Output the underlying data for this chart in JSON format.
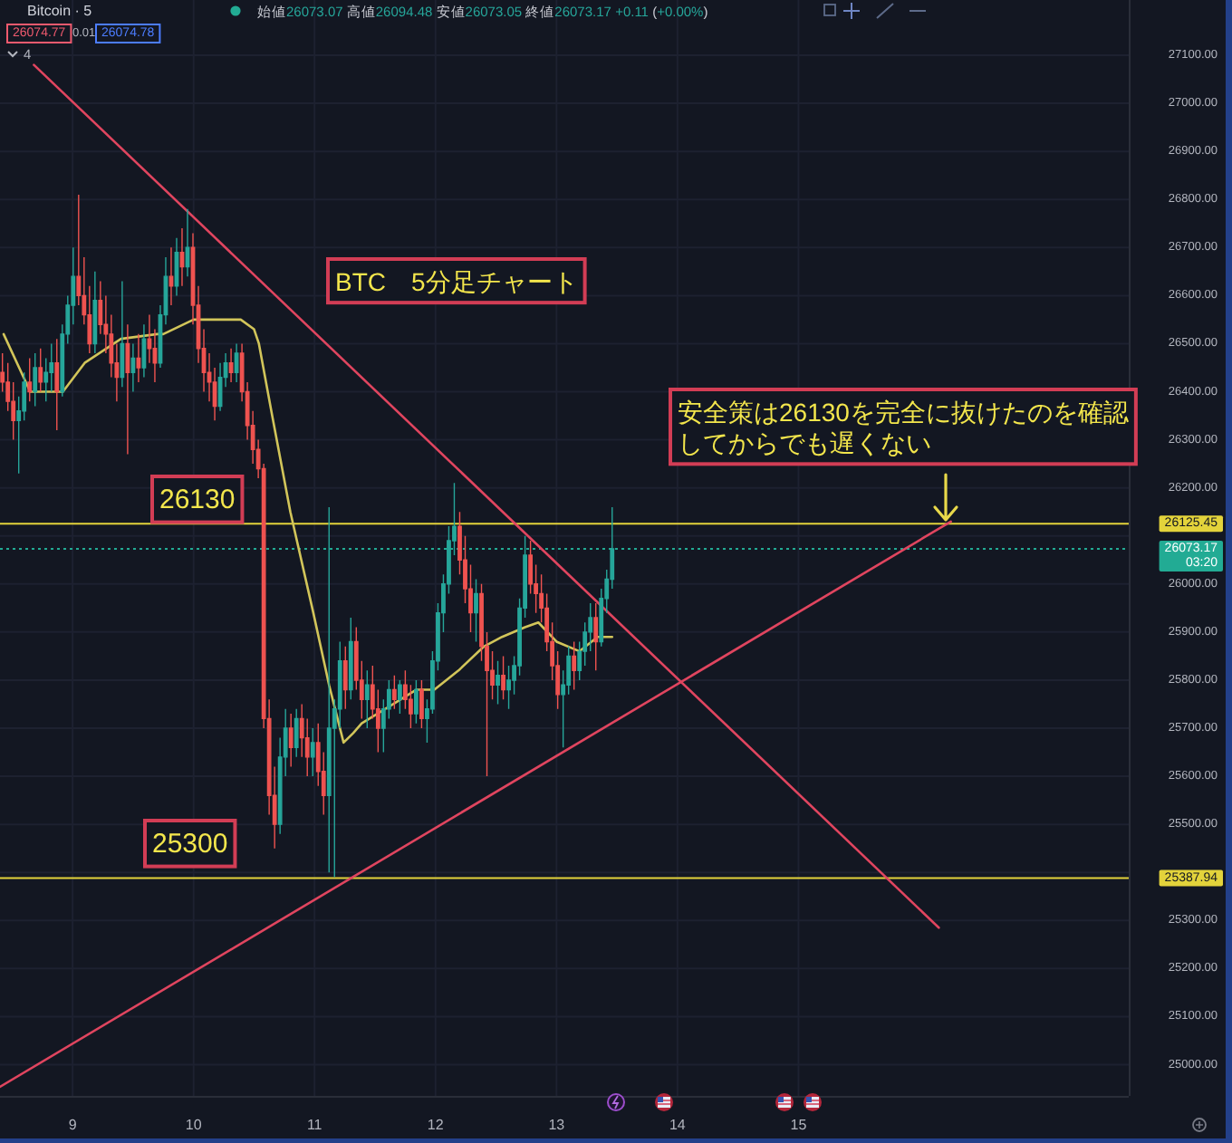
{
  "chart_data": {
    "type": "candlestick",
    "title": "Bitcoin · 5",
    "x": [
      8.42,
      8.465,
      8.51,
      8.555,
      8.6,
      8.645,
      8.69,
      8.735,
      8.78,
      8.825,
      8.87,
      8.915,
      8.96,
      9.005,
      9.05,
      9.095,
      9.14,
      9.185,
      9.23,
      9.275,
      9.32,
      9.365,
      9.41,
      9.455,
      9.5,
      9.545,
      9.59,
      9.635,
      9.68,
      9.725,
      9.77,
      9.815,
      9.86,
      9.905,
      9.95,
      9.995,
      10.04,
      10.085,
      10.13,
      10.175,
      10.22,
      10.265,
      10.31,
      10.355,
      10.4,
      10.445,
      10.49,
      10.535,
      10.58,
      10.625,
      10.67,
      10.715,
      10.76,
      10.805,
      10.85,
      10.895,
      10.94,
      10.985,
      11.03,
      11.075,
      11.12,
      11.165,
      11.21,
      11.255,
      11.3,
      11.345,
      11.39,
      11.435,
      11.48,
      11.525,
      11.57,
      11.615,
      11.66,
      11.705,
      11.75,
      11.795,
      11.84,
      11.885,
      11.93,
      11.975,
      12.02,
      12.065,
      12.11,
      12.155,
      12.2,
      12.245,
      12.29,
      12.335,
      12.38,
      12.425,
      12.47,
      12.515,
      12.56,
      12.605,
      12.65,
      12.695,
      12.74,
      12.785,
      12.83,
      12.875,
      12.92,
      12.965,
      13.01,
      13.055,
      13.1,
      13.145,
      13.19,
      13.235,
      13.28,
      13.325,
      13.37,
      13.415,
      13.46
    ],
    "ohlc": [
      [
        26440,
        26480,
        26400,
        26420
      ],
      [
        26420,
        26460,
        26360,
        26380
      ],
      [
        26380,
        26420,
        26300,
        26340
      ],
      [
        26340,
        26390,
        26230,
        26360
      ],
      [
        26360,
        26440,
        26340,
        26420
      ],
      [
        26420,
        26470,
        26380,
        26400
      ],
      [
        26400,
        26480,
        26370,
        26450
      ],
      [
        26450,
        26490,
        26400,
        26420
      ],
      [
        26420,
        26470,
        26380,
        26440
      ],
      [
        26440,
        26500,
        26400,
        26460
      ],
      [
        26460,
        26510,
        26320,
        26400
      ],
      [
        26400,
        26540,
        26390,
        26520
      ],
      [
        26520,
        26600,
        26500,
        26580
      ],
      [
        26580,
        26700,
        26540,
        26640
      ],
      [
        26640,
        26810,
        26580,
        26600
      ],
      [
        26600,
        26680,
        26540,
        26560
      ],
      [
        26560,
        26620,
        26480,
        26500
      ],
      [
        26500,
        26650,
        26480,
        26590
      ],
      [
        26590,
        26630,
        26520,
        26540
      ],
      [
        26540,
        26600,
        26480,
        26520
      ],
      [
        26520,
        26560,
        26430,
        26460
      ],
      [
        26460,
        26500,
        26380,
        26430
      ],
      [
        26430,
        26630,
        26410,
        26500
      ],
      [
        26500,
        26540,
        26270,
        26440
      ],
      [
        26440,
        26500,
        26400,
        26470
      ],
      [
        26470,
        26520,
        26420,
        26450
      ],
      [
        26450,
        26540,
        26430,
        26510
      ],
      [
        26510,
        26560,
        26460,
        26490
      ],
      [
        26490,
        26530,
        26420,
        26460
      ],
      [
        26460,
        26580,
        26450,
        26560
      ],
      [
        26560,
        26680,
        26540,
        26640
      ],
      [
        26640,
        26700,
        26580,
        26620
      ],
      [
        26620,
        26720,
        26600,
        26690
      ],
      [
        26690,
        26740,
        26620,
        26660
      ],
      [
        26660,
        26780,
        26640,
        26700
      ],
      [
        26700,
        26730,
        26540,
        26580
      ],
      [
        26580,
        26620,
        26460,
        26490
      ],
      [
        26490,
        26530,
        26400,
        26440
      ],
      [
        26440,
        26480,
        26380,
        26420
      ],
      [
        26420,
        26450,
        26340,
        26370
      ],
      [
        26370,
        26460,
        26360,
        26430
      ],
      [
        26430,
        26480,
        26410,
        26460
      ],
      [
        26460,
        26490,
        26420,
        26440
      ],
      [
        26440,
        26500,
        26420,
        26480
      ],
      [
        26480,
        26500,
        26380,
        26400
      ],
      [
        26400,
        26420,
        26300,
        26330
      ],
      [
        26330,
        26360,
        26250,
        26280
      ],
      [
        26280,
        26300,
        26220,
        26240
      ],
      [
        26240,
        26250,
        25700,
        25720
      ],
      [
        25720,
        25760,
        25520,
        25560
      ],
      [
        25560,
        25620,
        25450,
        25500
      ],
      [
        25500,
        25680,
        25480,
        25640
      ],
      [
        25640,
        25740,
        25600,
        25700
      ],
      [
        25700,
        25730,
        25620,
        25660
      ],
      [
        25660,
        25740,
        25640,
        25720
      ],
      [
        25720,
        25750,
        25640,
        25680
      ],
      [
        25680,
        25720,
        25600,
        25640
      ],
      [
        25640,
        25700,
        25600,
        25670
      ],
      [
        25670,
        25710,
        25580,
        25610
      ],
      [
        25610,
        25650,
        25520,
        25560
      ],
      [
        25560,
        26160,
        25400,
        25700
      ],
      [
        25700,
        25760,
        25390,
        25740
      ],
      [
        25740,
        25880,
        25700,
        25840
      ],
      [
        25840,
        25870,
        25740,
        25780
      ],
      [
        25780,
        25930,
        25760,
        25880
      ],
      [
        25880,
        25910,
        25780,
        25800
      ],
      [
        25800,
        25840,
        25720,
        25760
      ],
      [
        25760,
        25820,
        25700,
        25790
      ],
      [
        25790,
        25830,
        25720,
        25740
      ],
      [
        25740,
        25780,
        25650,
        25700
      ],
      [
        25700,
        25760,
        25650,
        25740
      ],
      [
        25740,
        25800,
        25720,
        25780
      ],
      [
        25780,
        25810,
        25740,
        25760
      ],
      [
        25760,
        25800,
        25730,
        25790
      ],
      [
        25790,
        25820,
        25740,
        25760
      ],
      [
        25760,
        25790,
        25700,
        25730
      ],
      [
        25730,
        25800,
        25710,
        25780
      ],
      [
        25780,
        25800,
        25700,
        25720
      ],
      [
        25720,
        25760,
        25670,
        25740
      ],
      [
        25740,
        25860,
        25730,
        25840
      ],
      [
        25840,
        25960,
        25820,
        25940
      ],
      [
        25940,
        26020,
        25900,
        26000
      ],
      [
        26000,
        26120,
        25980,
        26090
      ],
      [
        26090,
        26210,
        26060,
        26120
      ],
      [
        26120,
        26150,
        26020,
        26050
      ],
      [
        26050,
        26100,
        25960,
        25990
      ],
      [
        25990,
        26040,
        25900,
        25940
      ],
      [
        25940,
        26010,
        25880,
        25980
      ],
      [
        25980,
        26000,
        25840,
        25870
      ],
      [
        25870,
        25900,
        25600,
        25820
      ],
      [
        25820,
        25860,
        25760,
        25790
      ],
      [
        25790,
        25840,
        25750,
        25810
      ],
      [
        25810,
        25850,
        25760,
        25780
      ],
      [
        25780,
        25830,
        25740,
        25800
      ],
      [
        25800,
        25850,
        25770,
        25830
      ],
      [
        25830,
        25970,
        25810,
        25950
      ],
      [
        25950,
        26100,
        25930,
        26060
      ],
      [
        26060,
        26090,
        25980,
        26000
      ],
      [
        26000,
        26040,
        25940,
        25980
      ],
      [
        25980,
        26020,
        25920,
        25950
      ],
      [
        25950,
        25980,
        25860,
        25880
      ],
      [
        25880,
        25920,
        25800,
        25830
      ],
      [
        25830,
        25860,
        25740,
        25770
      ],
      [
        25770,
        25820,
        25660,
        25790
      ],
      [
        25790,
        25870,
        25770,
        25850
      ],
      [
        25850,
        25880,
        25780,
        25820
      ],
      [
        25820,
        25880,
        25800,
        25860
      ],
      [
        25860,
        25920,
        25830,
        25900
      ],
      [
        25900,
        25960,
        25860,
        25930
      ],
      [
        25930,
        25960,
        25820,
        25880
      ],
      [
        25880,
        25990,
        25870,
        25970
      ],
      [
        25970,
        26030,
        25940,
        26010
      ],
      [
        26010,
        26160,
        25990,
        26073.17
      ]
    ],
    "colors": [
      "#ef5350",
      "#ef5350",
      "#ef5350",
      "#26a69a",
      "#26a69a",
      "#ef5350",
      "#26a69a",
      "#ef5350",
      "#26a69a",
      "#26a69a",
      "#ef5350",
      "#26a69a",
      "#26a69a",
      "#26a69a",
      "#ef5350",
      "#ef5350",
      "#ef5350",
      "#26a69a",
      "#ef5350",
      "#ef5350",
      "#ef5350",
      "#ef5350",
      "#26a69a",
      "#ef5350",
      "#26a69a",
      "#ef5350",
      "#26a69a",
      "#ef5350",
      "#ef5350",
      "#26a69a",
      "#26a69a",
      "#ef5350",
      "#26a69a",
      "#ef5350",
      "#26a69a",
      "#ef5350",
      "#ef5350",
      "#ef5350",
      "#ef5350",
      "#ef5350",
      "#26a69a",
      "#26a69a",
      "#ef5350",
      "#26a69a",
      "#ef5350",
      "#ef5350",
      "#ef5350",
      "#ef5350",
      "#ef5350",
      "#ef5350",
      "#ef5350",
      "#26a69a",
      "#26a69a",
      "#ef5350",
      "#26a69a",
      "#ef5350",
      "#ef5350",
      "#26a69a",
      "#ef5350",
      "#ef5350",
      "#26a69a",
      "#26a69a",
      "#26a69a",
      "#ef5350",
      "#26a69a",
      "#ef5350",
      "#ef5350",
      "#26a69a",
      "#ef5350",
      "#ef5350",
      "#26a69a",
      "#26a69a",
      "#ef5350",
      "#26a69a",
      "#ef5350",
      "#ef5350",
      "#26a69a",
      "#ef5350",
      "#26a69a",
      "#26a69a",
      "#26a69a",
      "#26a69a",
      "#26a69a",
      "#26a69a",
      "#ef5350",
      "#ef5350",
      "#ef5350",
      "#26a69a",
      "#ef5350",
      "#ef5350",
      "#ef5350",
      "#26a69a",
      "#ef5350",
      "#26a69a",
      "#26a69a",
      "#26a69a",
      "#26a69a",
      "#ef5350",
      "#ef5350",
      "#ef5350",
      "#ef5350",
      "#ef5350",
      "#ef5350",
      "#26a69a",
      "#26a69a",
      "#ef5350",
      "#26a69a",
      "#26a69a",
      "#26a69a",
      "#ef5350",
      "#26a69a",
      "#26a69a",
      "#26a69a"
    ],
    "series": [
      {
        "type": "line",
        "color": "#d2c55a",
        "x": [
          8.43,
          8.65,
          8.92,
          9.1,
          9.4,
          9.7,
          9.75,
          10.0,
          10.39,
          10.5,
          10.54,
          10.65,
          10.8,
          10.99,
          11.12,
          11.24,
          11.32,
          11.39,
          11.65,
          11.84,
          11.99,
          12.19,
          12.4,
          12.55,
          12.74,
          12.85,
          13.0,
          13.19,
          13.34,
          13.46
        ],
        "values": [
          26520,
          26400,
          26400,
          26460,
          26510,
          26520,
          26520,
          26550,
          26550,
          26530,
          26500,
          26350,
          26150,
          25940,
          25790,
          25670,
          25690,
          25710,
          25750,
          25780,
          25780,
          25820,
          25870,
          25890,
          25910,
          25920,
          25880,
          25860,
          25890,
          25890
        ]
      },
      {
        "type": "line",
        "color": "#e0455f",
        "x": [
          8.68,
          16.16
        ],
        "values": [
          27080,
          25285
        ]
      },
      {
        "type": "line",
        "color": "#e0455f",
        "x": [
          8.4,
          16.26
        ],
        "values": [
          24954,
          26130
        ]
      }
    ],
    "xlim": [
      8.4,
      17.73
    ],
    "xticks": [
      9,
      10,
      11,
      12,
      13,
      14,
      15
    ],
    "ylim": [
      24935,
      27215
    ],
    "yticks": [
      {
        "value": 25000,
        "label": "25000.00"
      },
      {
        "value": 25100,
        "label": "25100.00"
      },
      {
        "value": 25200,
        "label": "25200.00"
      },
      {
        "value": 25300,
        "label": "25300.00"
      },
      {
        "value": 25400,
        "label": null
      },
      {
        "value": 25500,
        "label": "25500.00"
      },
      {
        "value": 25600,
        "label": "25600.00"
      },
      {
        "value": 25700,
        "label": "25700.00"
      },
      {
        "value": 25800,
        "label": "25800.00"
      },
      {
        "value": 25900,
        "label": "25900.00"
      },
      {
        "value": 26000,
        "label": "26000.00"
      },
      {
        "value": 26100,
        "label": null
      },
      {
        "value": 26200,
        "label": "26200.00"
      },
      {
        "value": 26300,
        "label": "26300.00"
      },
      {
        "value": 26400,
        "label": "26400.00"
      },
      {
        "value": 26500,
        "label": "26500.00"
      },
      {
        "value": 26600,
        "label": "26600.00"
      },
      {
        "value": 26700,
        "label": "26700.00"
      },
      {
        "value": 26800,
        "label": "26800.00"
      },
      {
        "value": 26900,
        "label": "26900.00"
      },
      {
        "value": 27000,
        "label": "27000.00"
      },
      {
        "value": 27100,
        "label": "27100.00"
      }
    ],
    "grid": true,
    "ref_lines": [
      {
        "axis": "y",
        "value": 26125.45,
        "label": "26125.45",
        "color": "#e3d33b"
      },
      {
        "axis": "y",
        "value": 25387.94,
        "label": "25387.94",
        "color": "#e3d33b"
      },
      {
        "axis": "y",
        "value": 26073.17,
        "label": "26073.17\n03:20",
        "color": "#22ab94",
        "line_style": "dotted"
      }
    ],
    "annotations": [
      "始値26073.07 高値26094.48 安値26073.05 終値26073.17 +0.11 (+0.00%)",
      "26074.77",
      "0.01",
      "26074.78",
      "4",
      "BTC　5分足チャート",
      "安全策は26130を完全に抜けたのを確認してからでも遅くない",
      "26130",
      "25300"
    ]
  }
}
